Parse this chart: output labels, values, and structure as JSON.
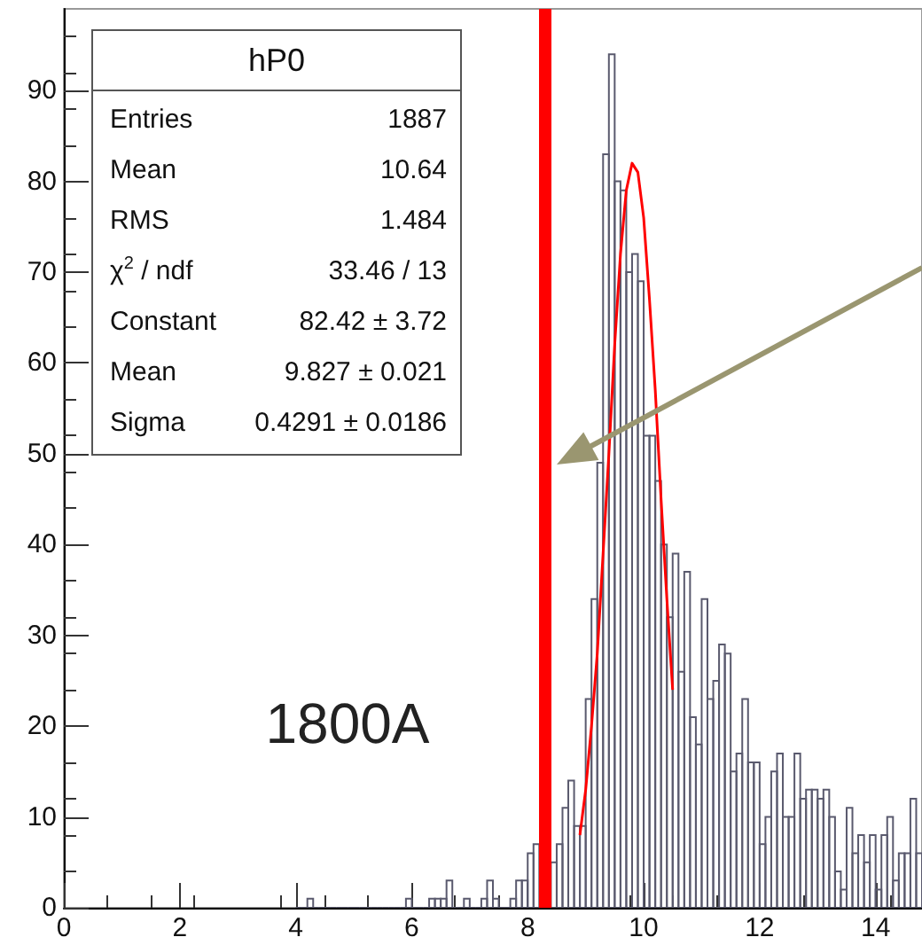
{
  "chart_data": {
    "type": "histogram",
    "title": "hP0",
    "xlim": [
      0,
      14.8
    ],
    "ylim": [
      0,
      99
    ],
    "xticks": [
      0,
      2,
      4,
      6,
      8,
      10,
      12,
      14
    ],
    "yticks": [
      0,
      10,
      20,
      30,
      40,
      50,
      60,
      70,
      80,
      90
    ],
    "grid": false,
    "series": [
      {
        "color": "#5a5a6e",
        "bins": [
          4,
          4.1,
          4.2,
          4.3,
          4.4,
          4.5,
          4.6,
          4.7,
          4.8,
          4.9,
          5,
          5.1,
          5.2,
          5.3,
          5.4,
          5.5,
          5.6,
          5.7,
          5.8,
          5.9,
          6,
          6.1,
          6.2,
          6.3,
          6.4,
          6.5,
          6.6,
          6.7,
          6.8,
          6.9,
          7,
          7.1,
          7.2,
          7.3,
          7.4,
          7.5,
          7.6,
          7.7,
          7.8,
          7.9,
          8,
          8.1,
          8.2,
          8.3,
          8.4,
          8.5,
          8.6,
          8.7,
          8.8,
          8.9,
          9,
          9.1,
          9.2,
          9.3,
          9.4,
          9.5,
          9.6,
          9.7,
          9.8,
          9.9,
          10,
          10.1,
          10.2,
          10.3,
          10.4,
          10.5,
          10.6,
          10.7,
          10.8,
          10.9,
          11,
          11.1,
          11.2,
          11.3,
          11.4,
          11.5,
          11.6,
          11.7,
          11.8,
          11.9,
          12,
          12.1,
          12.2,
          12.3,
          12.4,
          12.5,
          12.6,
          12.7,
          12.8,
          12.9,
          13,
          13.1,
          13.2,
          13.3,
          13.4,
          13.5,
          13.6,
          13.7,
          13.8,
          13.9,
          14,
          14.1,
          14.2,
          14.3,
          14.4,
          14.5,
          14.6,
          14.7,
          14.8
        ],
        "values": [
          0,
          0,
          1,
          0,
          0,
          0,
          0,
          0,
          0,
          0,
          0,
          0,
          0,
          0,
          0,
          0,
          0,
          0,
          0,
          1,
          0,
          0,
          0,
          1,
          1,
          1,
          3,
          0,
          0,
          1,
          0,
          0,
          1,
          3,
          1,
          0,
          0,
          1,
          3,
          3,
          6,
          7,
          null,
          null,
          5,
          7,
          11,
          14,
          9,
          9,
          23,
          34,
          49,
          83,
          94,
          80,
          79,
          70,
          72,
          69,
          52,
          52,
          47,
          40,
          32,
          39,
          26,
          37,
          21,
          18,
          34,
          23,
          25,
          29,
          28,
          15,
          17,
          23,
          16,
          16,
          7,
          10,
          15,
          17,
          10,
          10,
          17,
          12,
          13,
          13,
          12,
          13,
          10,
          4,
          2,
          11,
          6,
          8,
          5,
          8,
          2,
          8,
          10,
          3,
          6,
          6,
          12,
          6
        ]
      },
      {
        "type": "line",
        "color": "#ff0000",
        "x": [
          8.9,
          9,
          9.1,
          9.2,
          9.3,
          9.4,
          9.5,
          9.6,
          9.7,
          9.8,
          9.9,
          10,
          10.1,
          10.2,
          10.3,
          10.4,
          10.5
        ],
        "values": [
          8,
          13,
          20,
          28,
          39,
          50,
          62,
          72,
          79,
          82,
          81,
          76,
          67,
          57,
          45,
          34,
          24
        ]
      }
    ],
    "ref_lines": [
      {
        "axis": "x",
        "value": 8.3,
        "color": "#ff0000"
      }
    ],
    "annotations": [
      "1800A",
      "Entries",
      "1887",
      "Mean",
      "10.64",
      "RMS",
      "1.484",
      "χ$^{2}$ / ndf",
      "33.46 / 13",
      "Constant",
      "82.42 ± 3.72",
      "Mean",
      "9.827 ± 0.021",
      "Sigma",
      "0.4291 ± 0.0186"
    ]
  }
}
